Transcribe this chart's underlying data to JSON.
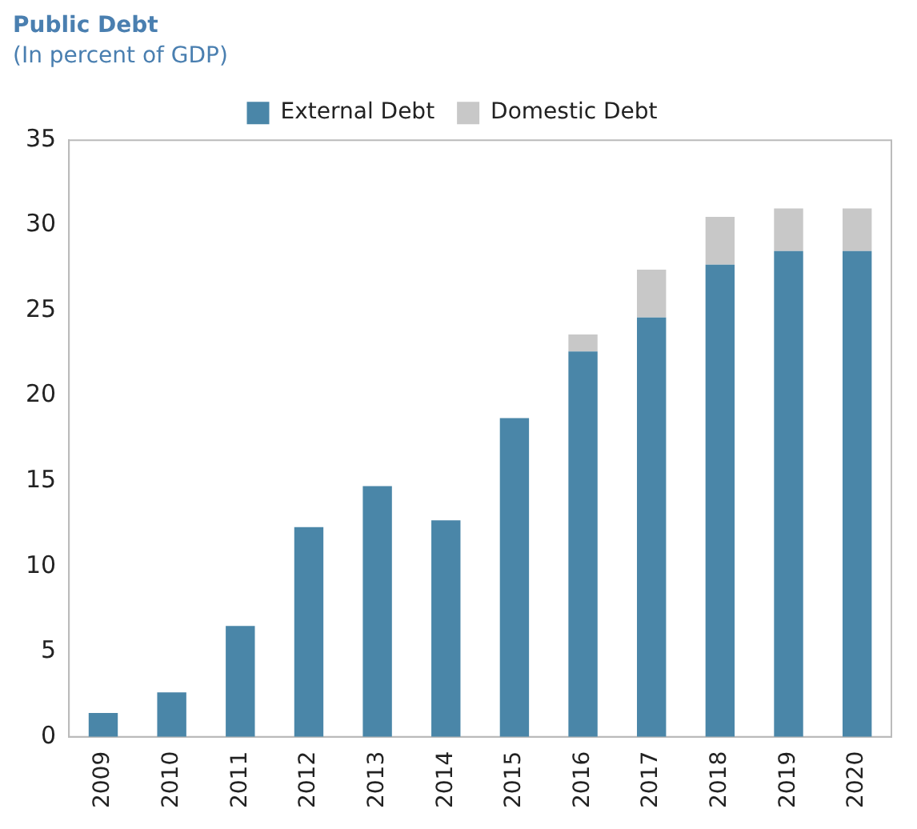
{
  "chart_data": {
    "type": "bar",
    "title": "Public Debt",
    "subtitle": "(In percent of GDP)",
    "categories": [
      "2009",
      "2010",
      "2011",
      "2012",
      "2013",
      "2014",
      "2015",
      "2016",
      "2017",
      "2018",
      "2019",
      "2020"
    ],
    "series": [
      {
        "name": "External Debt",
        "color": "#4a86a8",
        "values": [
          1.4,
          2.6,
          6.5,
          12.3,
          14.7,
          12.7,
          18.7,
          22.6,
          24.6,
          27.7,
          28.5,
          28.5
        ]
      },
      {
        "name": "Domestic Debt",
        "color": "#c8c8c8",
        "values": [
          null,
          null,
          null,
          null,
          null,
          null,
          null,
          1.0,
          2.8,
          2.8,
          2.5,
          2.5
        ]
      }
    ],
    "stacked": true,
    "ylim": [
      0,
      35
    ],
    "yticks": [
      0,
      5,
      10,
      15,
      20,
      25,
      30,
      35
    ],
    "grid": false,
    "legend": "top"
  }
}
